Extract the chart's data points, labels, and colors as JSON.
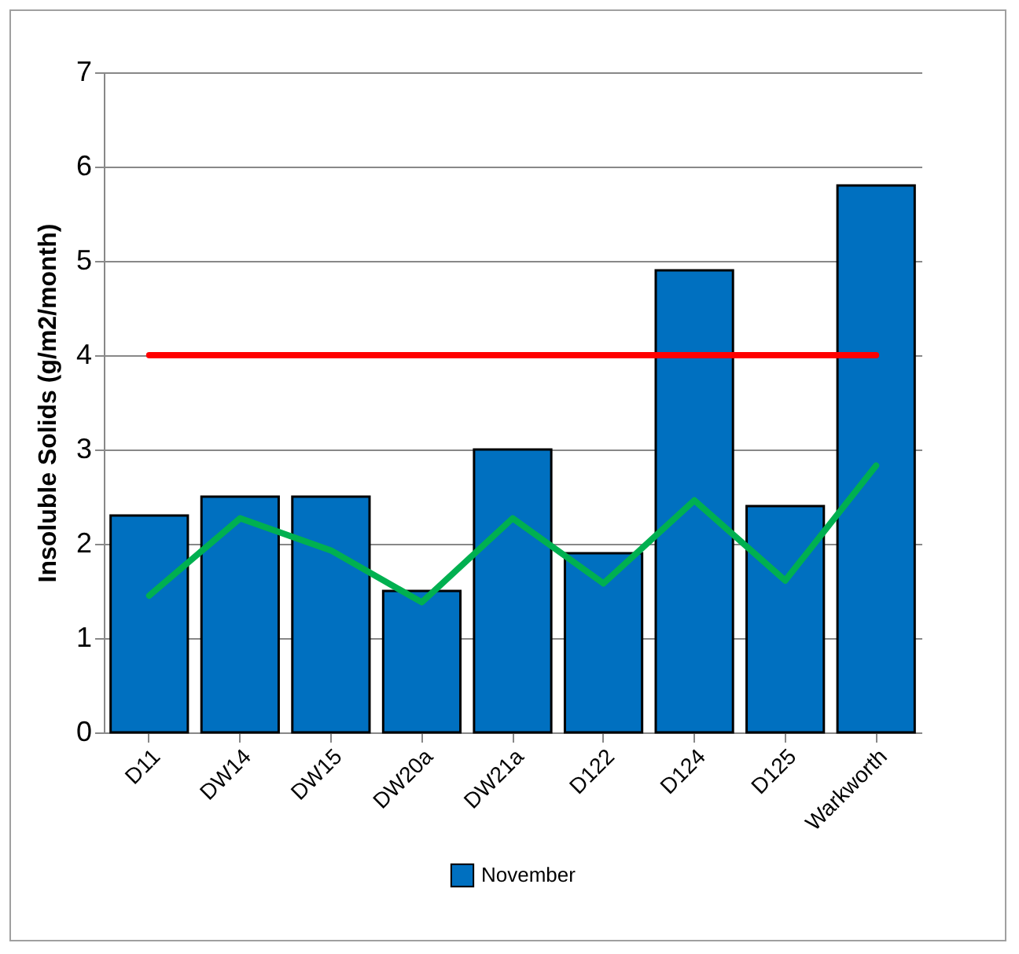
{
  "chart_data": {
    "type": "bar",
    "ylabel": "Insoluble Solids (g/m2/month)",
    "categories": [
      "D11",
      "DW14",
      "DW15",
      "DW20a",
      "DW21a",
      "D122",
      "D124",
      "D125",
      "Warkworth"
    ],
    "series": [
      {
        "name": "November",
        "color": "#0070c0",
        "values": [
          2.3,
          2.5,
          2.5,
          1.5,
          3.0,
          1.9,
          4.9,
          2.4,
          5.8
        ]
      },
      {
        "type": "line",
        "color": "#ff0000",
        "values": [
          4,
          4,
          4,
          4,
          4,
          4,
          4,
          4,
          4
        ]
      },
      {
        "type": "line",
        "color": "#00b050",
        "values": [
          1.45,
          2.27,
          1.93,
          1.38,
          2.27,
          1.58,
          2.46,
          1.61,
          2.83
        ]
      }
    ],
    "ylim": [
      0,
      7
    ],
    "yticks": [
      0,
      1,
      2,
      3,
      4,
      5,
      6,
      7
    ],
    "grid": "y",
    "legend": "bottom"
  }
}
